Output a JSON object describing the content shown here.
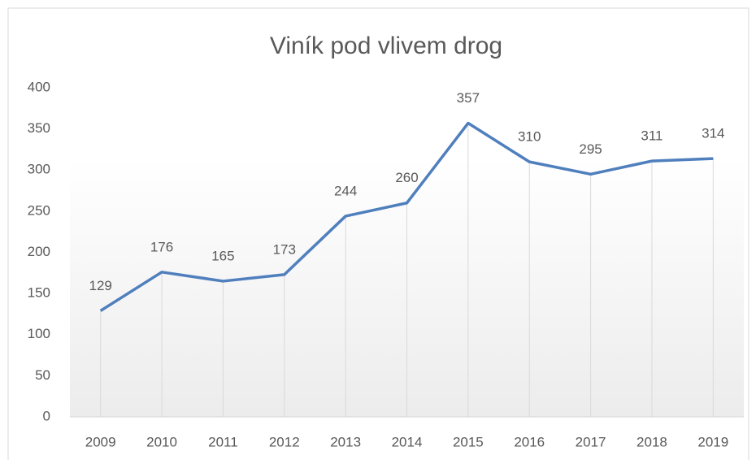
{
  "chart_data": {
    "type": "line",
    "title": "Viník pod vlivem drog",
    "categories": [
      "2009",
      "2010",
      "2011",
      "2012",
      "2013",
      "2014",
      "2015",
      "2016",
      "2017",
      "2018",
      "2019"
    ],
    "series": [
      {
        "name": "Viník pod vlivem drog",
        "color": "#4f7fbd",
        "values": [
          129,
          176,
          165,
          173,
          244,
          260,
          357,
          310,
          295,
          311,
          314
        ]
      }
    ],
    "ylim": [
      0,
      400
    ],
    "yticks": [
      0,
      50,
      100,
      150,
      200,
      250,
      300,
      350,
      400
    ],
    "drop_lines": true,
    "data_labels": true,
    "legend": false
  }
}
